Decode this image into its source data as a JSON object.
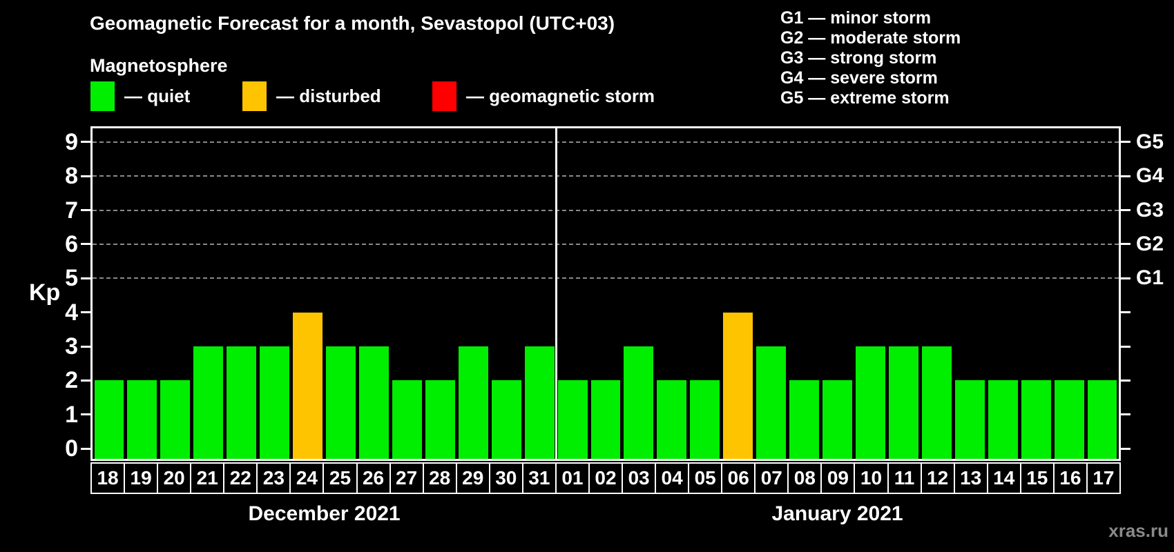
{
  "header": {
    "title": "Geomagnetic Forecast for a month, Sevastopol (UTC+03)",
    "subtitle": "Magnetosphere"
  },
  "legend": {
    "items": [
      {
        "name": "quiet",
        "label": "— quiet",
        "color": "#00ee00"
      },
      {
        "name": "disturbed",
        "label": "— disturbed",
        "color": "#ffc400"
      },
      {
        "name": "storm",
        "label": "— geomagnetic storm",
        "color": "#ff0000"
      }
    ]
  },
  "g_legend": {
    "items": [
      "G1 — minor storm",
      "G2 — moderate storm",
      "G3 — strong storm",
      "G4 — severe storm",
      "G5 — extreme storm"
    ]
  },
  "colors": {
    "quiet": "#00ee00",
    "disturbed": "#ffc400",
    "storm": "#ff0000",
    "axis": "#ffffff",
    "grid": "#8a8a8a",
    "background": "#000000",
    "watermark": "#8a8a8a"
  },
  "watermark": "xras.ru",
  "chart_data": {
    "type": "bar",
    "title": "Geomagnetic Forecast for a month, Sevastopol (UTC+03)",
    "ylabel": "Kp",
    "ylim": [
      -0.3,
      9.4
    ],
    "y_ticks": [
      0,
      1,
      2,
      3,
      4,
      5,
      6,
      7,
      8,
      9
    ],
    "grid_levels": [
      5,
      6,
      7,
      8,
      9
    ],
    "grid_on": true,
    "legend_position": "top-left",
    "right_axis_labels": [
      {
        "label": "G1",
        "kp": 5
      },
      {
        "label": "G2",
        "kp": 6
      },
      {
        "label": "G3",
        "kp": 7
      },
      {
        "label": "G4",
        "kp": 8
      },
      {
        "label": "G5",
        "kp": 9
      }
    ],
    "groups": [
      {
        "month": "December 2021",
        "days": [
          "18",
          "19",
          "20",
          "21",
          "22",
          "23",
          "24",
          "25",
          "26",
          "27",
          "28",
          "29",
          "30",
          "31"
        ],
        "values": [
          2,
          2,
          2,
          3,
          3,
          3,
          4,
          3,
          3,
          2,
          2,
          3,
          2,
          3
        ],
        "status": [
          "quiet",
          "quiet",
          "quiet",
          "quiet",
          "quiet",
          "quiet",
          "disturbed",
          "quiet",
          "quiet",
          "quiet",
          "quiet",
          "quiet",
          "quiet",
          "quiet"
        ]
      },
      {
        "month": "January 2021",
        "days": [
          "01",
          "02",
          "03",
          "04",
          "05",
          "06",
          "07",
          "08",
          "09",
          "10",
          "11",
          "12",
          "13",
          "14",
          "15",
          "16",
          "17"
        ],
        "values": [
          2,
          2,
          3,
          2,
          2,
          4,
          3,
          2,
          2,
          3,
          3,
          3,
          2,
          2,
          2,
          2,
          2
        ],
        "status": [
          "quiet",
          "quiet",
          "quiet",
          "quiet",
          "quiet",
          "disturbed",
          "quiet",
          "quiet",
          "quiet",
          "quiet",
          "quiet",
          "quiet",
          "quiet",
          "quiet",
          "quiet",
          "quiet",
          "quiet"
        ]
      }
    ]
  }
}
